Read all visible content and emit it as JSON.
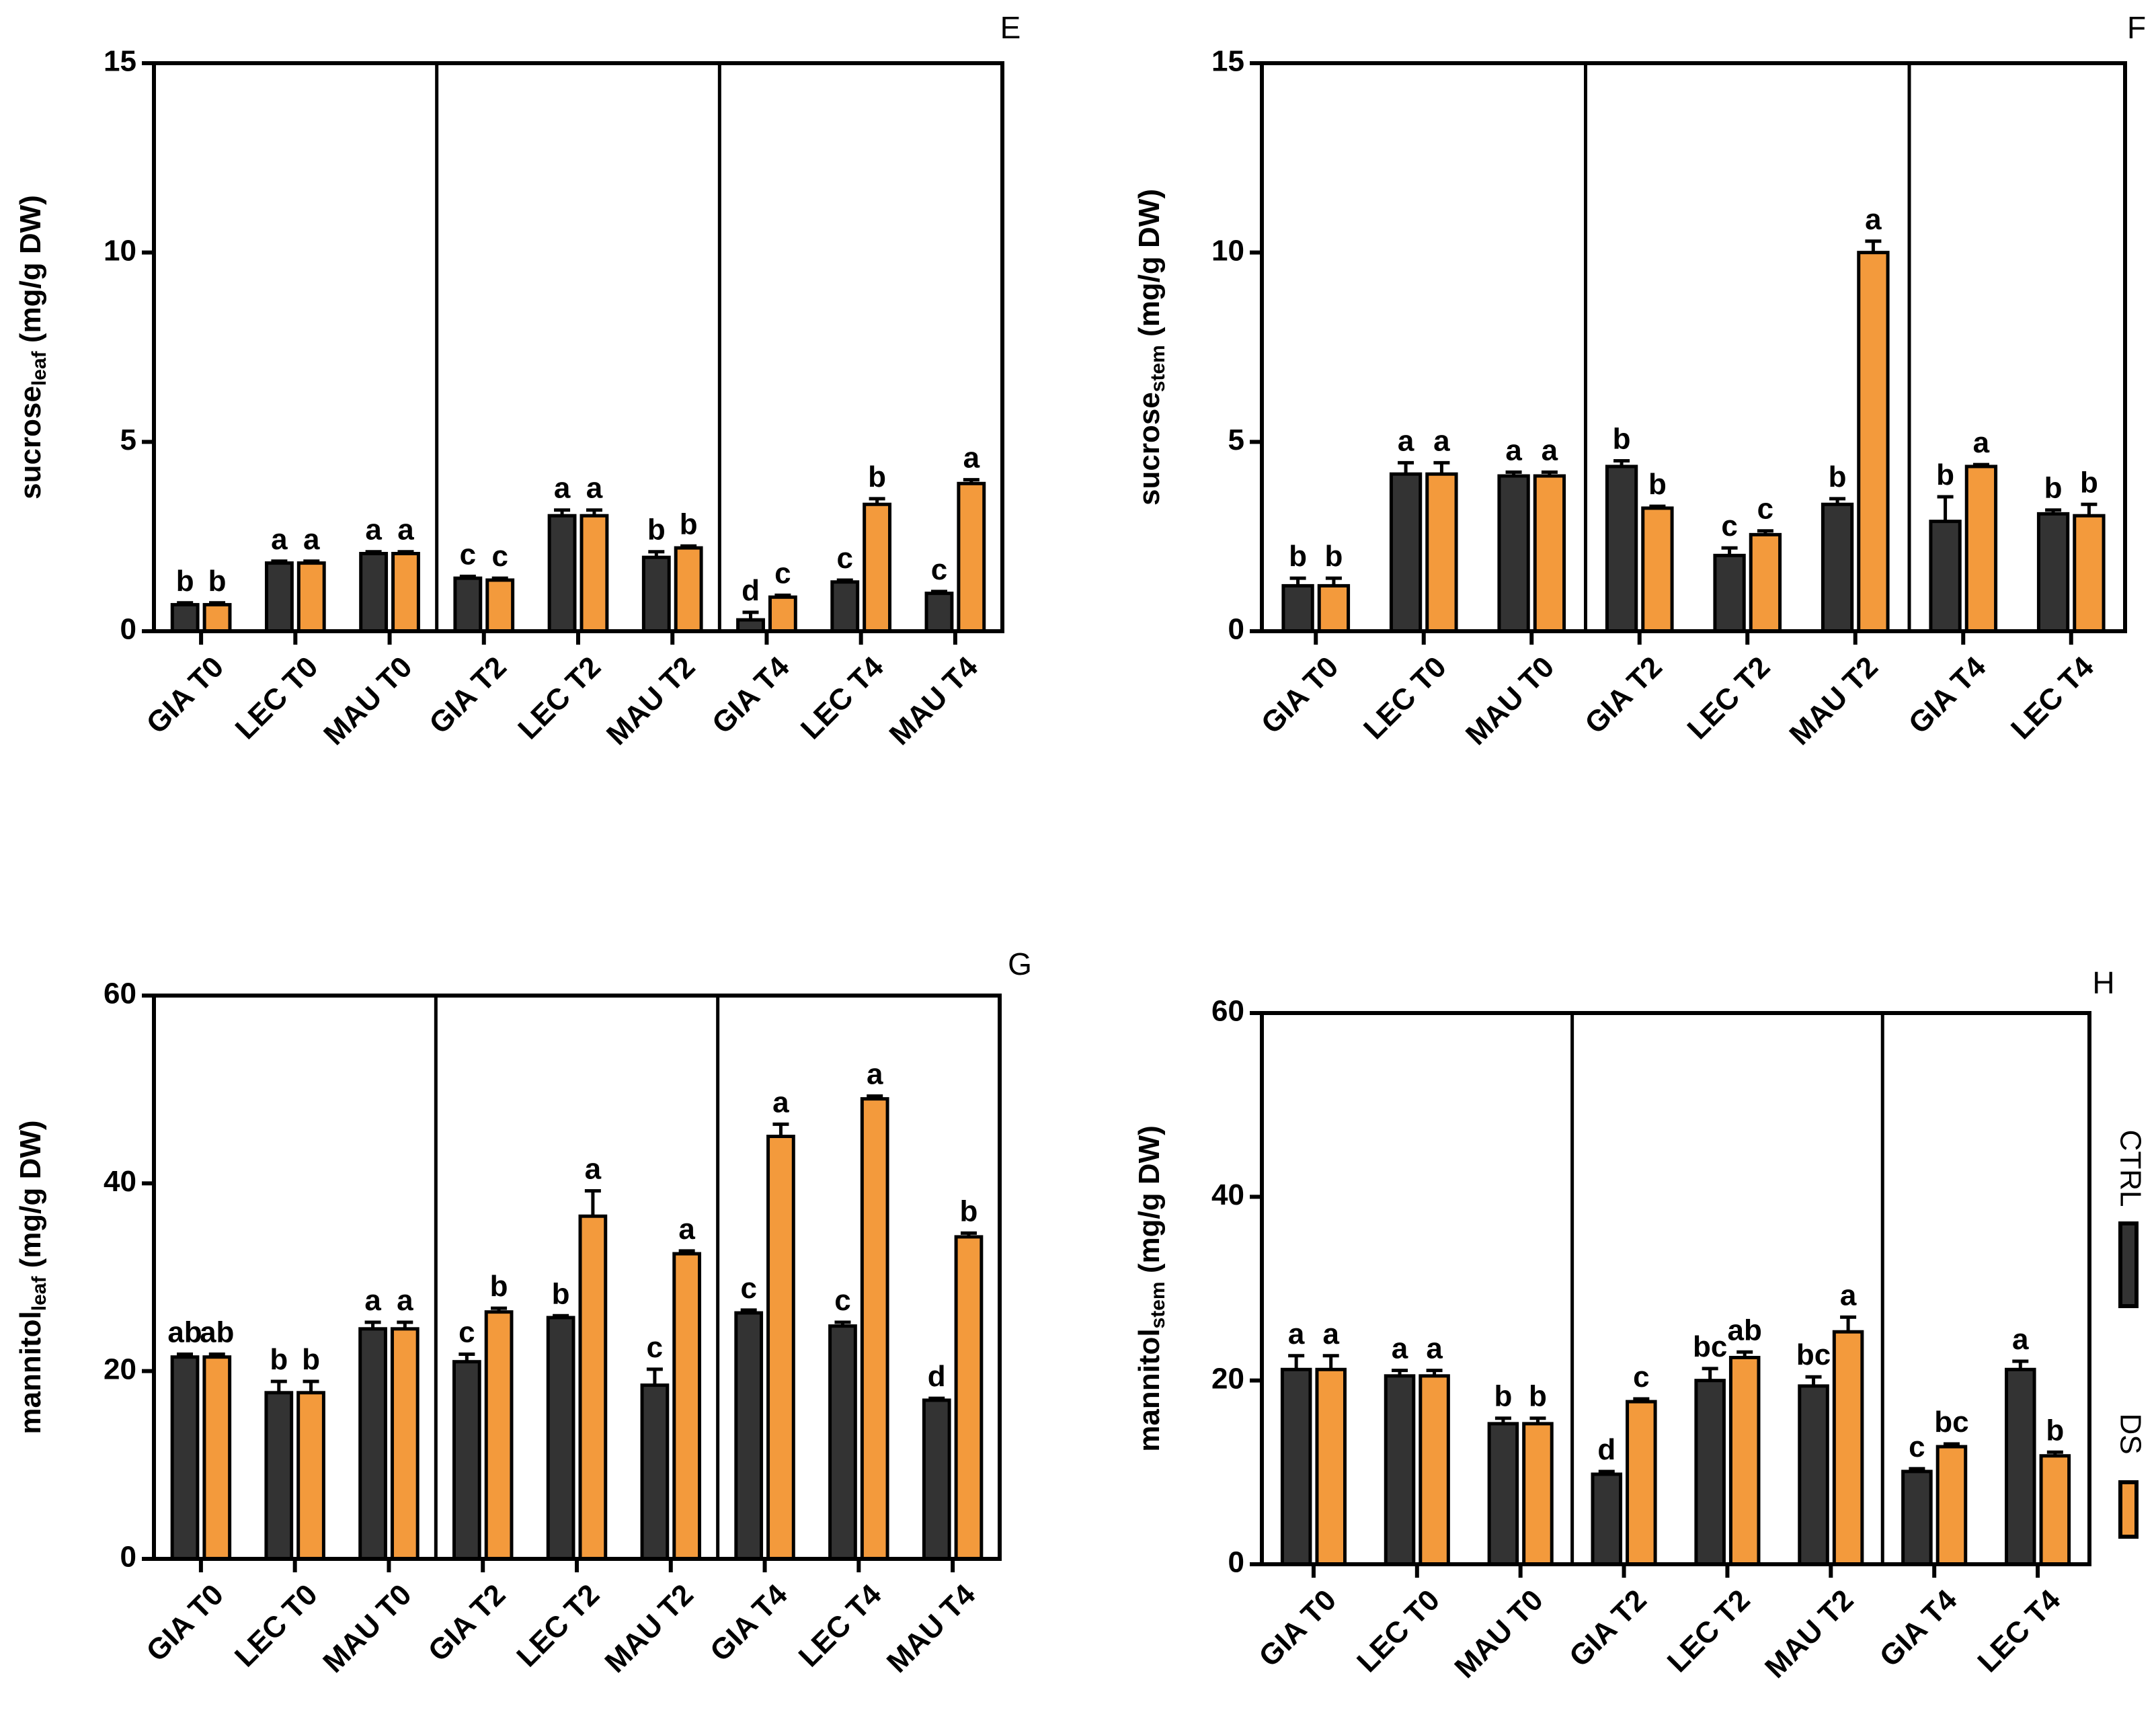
{
  "chart_data": [
    {
      "type": "bar",
      "panel": "E",
      "y_label": {
        "main": "sucrose",
        "subscript": "leaf",
        "rest": " (mg/g DW)"
      },
      "categories": [
        "GIA T0",
        "LEC T0",
        "MAU T0",
        "GIA T2",
        "LEC T2",
        "MAU T2",
        "GIA T4",
        "LEC T4",
        "MAU T4"
      ],
      "ylim": [
        0,
        15
      ],
      "yticks": [
        0,
        5,
        10,
        15
      ],
      "series": [
        {
          "color": "#333333",
          "values": [
            0.7,
            1.8,
            2.05,
            1.4,
            3.05,
            1.95,
            0.3,
            1.3,
            1.0
          ],
          "errors": [
            0.05,
            0.05,
            0.05,
            0.05,
            0.15,
            0.15,
            0.2,
            0.05,
            0.05
          ],
          "letters": [
            "b",
            "a",
            "a",
            "c",
            "a",
            "b",
            "d",
            "c",
            "c"
          ]
        },
        {
          "color": "#f39a3c",
          "values": [
            0.7,
            1.8,
            2.05,
            1.35,
            3.05,
            2.2,
            0.9,
            3.35,
            3.9
          ],
          "errors": [
            0.05,
            0.05,
            0.05,
            0.05,
            0.15,
            0.05,
            0.05,
            0.15,
            0.1
          ],
          "letters": [
            "b",
            "a",
            "a",
            "c",
            "a",
            "b",
            "c",
            "b",
            "a"
          ]
        }
      ]
    },
    {
      "type": "bar",
      "panel": "F",
      "y_label": {
        "main": "sucrose",
        "subscript": "stem",
        "rest": " (mg/g DW)"
      },
      "categories": [
        "GIA T0",
        "LEC T0",
        "MAU T0",
        "GIA T2",
        "LEC T2",
        "MAU T2",
        "GIA T4",
        "LEC T4"
      ],
      "ylim": [
        0,
        15
      ],
      "yticks": [
        0,
        5,
        10,
        15
      ],
      "series": [
        {
          "color": "#333333",
          "values": [
            1.2,
            4.15,
            4.1,
            4.35,
            2.0,
            3.35,
            2.9,
            3.1
          ],
          "errors": [
            0.2,
            0.3,
            0.1,
            0.15,
            0.2,
            0.15,
            0.65,
            0.1
          ],
          "letters": [
            "b",
            "a",
            "a",
            "b",
            "c",
            "b",
            "b",
            "b"
          ]
        },
        {
          "color": "#f39a3c",
          "values": [
            1.2,
            4.15,
            4.1,
            3.25,
            2.55,
            10.0,
            4.35,
            3.05
          ],
          "errors": [
            0.2,
            0.3,
            0.1,
            0.05,
            0.1,
            0.3,
            0.05,
            0.3
          ],
          "letters": [
            "b",
            "a",
            "a",
            "b",
            "c",
            "a",
            "a",
            "b"
          ]
        }
      ]
    },
    {
      "type": "bar",
      "panel": "G",
      "y_label": {
        "main": "mannitol",
        "subscript": "leaf",
        "rest": " (mg/g DW)"
      },
      "categories": [
        "GIA T0",
        "LEC T0",
        "MAU T0",
        "GIA T2",
        "LEC T2",
        "MAU T2",
        "GIA T4",
        "LEC T4",
        "MAU T4"
      ],
      "ylim": [
        0,
        60
      ],
      "yticks": [
        0,
        20,
        40,
        60
      ],
      "series": [
        {
          "color": "#333333",
          "values": [
            21.5,
            17.7,
            24.5,
            21.0,
            25.7,
            18.5,
            26.2,
            24.8,
            16.9
          ],
          "errors": [
            0.3,
            1.2,
            0.7,
            0.8,
            0.2,
            1.7,
            0.3,
            0.4,
            0.2
          ],
          "letters": [
            "ab",
            "b",
            "a",
            "c",
            "b",
            "c",
            "c",
            "c",
            "d"
          ]
        },
        {
          "color": "#f39a3c",
          "values": [
            21.5,
            17.7,
            24.5,
            26.3,
            36.5,
            32.5,
            45.0,
            49.0,
            34.3
          ],
          "errors": [
            0.3,
            1.2,
            0.7,
            0.4,
            2.7,
            0.3,
            1.3,
            0.3,
            0.4
          ],
          "letters": [
            "ab",
            "b",
            "a",
            "b",
            "a",
            "a",
            "a",
            "a",
            "b"
          ]
        }
      ]
    },
    {
      "type": "bar",
      "panel": "H",
      "y_label": {
        "main": "mannitol",
        "subscript": "stem",
        "rest": " (mg/g DW)"
      },
      "categories": [
        "GIA T0",
        "LEC T0",
        "MAU T0",
        "GIA T2",
        "LEC T2",
        "MAU T2",
        "GIA T4",
        "LEC T4"
      ],
      "ylim": [
        0,
        60
      ],
      "yticks": [
        0,
        20,
        40,
        60
      ],
      "legend": "right",
      "series": [
        {
          "name": "CTRL",
          "color": "#333333",
          "values": [
            21.2,
            20.5,
            15.3,
            9.8,
            20.0,
            19.4,
            10.1,
            21.2
          ],
          "errors": [
            1.5,
            0.6,
            0.6,
            0.3,
            1.3,
            1.0,
            0.3,
            0.9
          ],
          "letters": [
            "a",
            "a",
            "b",
            "d",
            "bc",
            "bc",
            "c",
            "a"
          ]
        },
        {
          "name": "DS",
          "color": "#f39a3c",
          "values": [
            21.2,
            20.5,
            15.3,
            17.7,
            22.5,
            25.3,
            12.8,
            11.8
          ],
          "errors": [
            1.5,
            0.6,
            0.6,
            0.3,
            0.6,
            1.6,
            0.3,
            0.4
          ],
          "letters": [
            "a",
            "a",
            "b",
            "c",
            "ab",
            "a",
            "bc",
            "b"
          ]
        }
      ]
    }
  ]
}
